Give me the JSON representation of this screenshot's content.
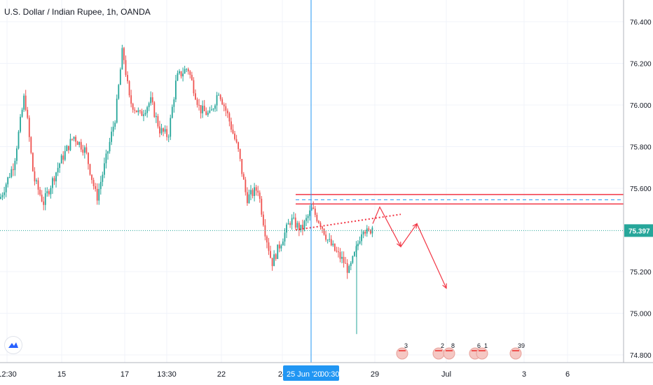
{
  "header": {
    "title": "U.S. Dollar / Indian Rupee, 1h, OANDA"
  },
  "colors": {
    "up": "#26a69a",
    "down": "#ef5350",
    "grid": "#f0f3fa",
    "crosshair": "#2196f3",
    "last_price": "#26a69a",
    "drawing": "#f23645"
  },
  "crosshair_label": {
    "date": "25 Jun '20",
    "time": "00:30"
  },
  "event_badges": [
    "3",
    "2",
    "8",
    "6",
    "1",
    "39"
  ],
  "chart_data": {
    "type": "candlestick",
    "title": "U.S. Dollar / Indian Rupee, 1h, OANDA",
    "ylim": [
      74.77,
      76.5
    ],
    "y_ticks": [
      "76.400",
      "76.200",
      "76.000",
      "75.800",
      "75.600",
      "75.200",
      "75.000",
      "74.800"
    ],
    "x_ticks": [
      "12:30",
      "15",
      "17",
      "13:30",
      "22",
      "24",
      "29",
      "Jul",
      "3",
      "6"
    ],
    "last_price": "75.397",
    "resistance_levels": [
      75.57,
      75.525
    ],
    "dashed_level": 75.545,
    "anchor_points": [
      {
        "x_label": "12:30",
        "price": 75.6
      },
      {
        "x_label": "15",
        "price": 75.57
      },
      {
        "x_label": "17",
        "price": 76.27
      },
      {
        "x_label": "13:30",
        "price": 76.0
      },
      {
        "x_label": "22",
        "price": 76.05
      },
      {
        "x_label": "24",
        "price": 75.24
      },
      {
        "x_label": "25 Jun '20 00:30",
        "price": 75.5
      },
      {
        "x_label": "29",
        "price": 75.4
      }
    ],
    "projection": [
      {
        "x_label": "29",
        "price": 75.43
      },
      {
        "x_label": "",
        "price": 75.51
      },
      {
        "x_label": "",
        "price": 75.32
      },
      {
        "x_label": "Jul",
        "price": 75.43
      },
      {
        "x_label": "Jul",
        "price": 75.12
      }
    ]
  }
}
